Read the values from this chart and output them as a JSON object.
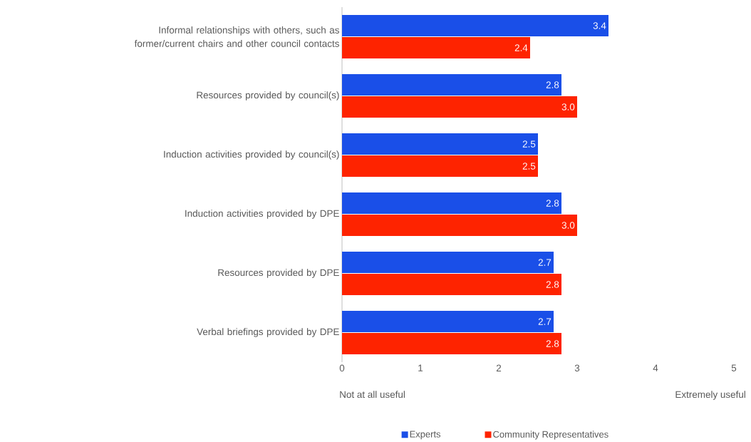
{
  "chart_data": {
    "type": "bar",
    "orientation": "horizontal",
    "categories": [
      "Informal relationships with others, such as former/current chairs and other council contacts",
      "Resources provided by council(s)",
      "Induction activities provided by council(s)",
      "Induction activities provided by DPE",
      "Resources provided by DPE",
      "Verbal briefings provided by DPE"
    ],
    "series": [
      {
        "name": "Experts",
        "color": "#1a4fe8",
        "values": [
          3.4,
          2.8,
          2.5,
          2.8,
          2.7,
          2.7
        ],
        "value_labels": [
          "3.4",
          "2.8",
          "2.5",
          "2.8",
          "2.7",
          "2.7"
        ]
      },
      {
        "name": "Community Representatives",
        "color": "#fe2300",
        "values": [
          2.4,
          3.0,
          2.5,
          3.0,
          2.8,
          2.8
        ],
        "value_labels": [
          "2.4",
          "3.0",
          "2.5",
          "3.0",
          "2.8",
          "2.8"
        ]
      }
    ],
    "xlim": [
      0,
      5
    ],
    "xticks": [
      0,
      1,
      2,
      3,
      4,
      5
    ],
    "annotations": [
      "Not at all useful",
      "Extremely useful"
    ],
    "legend": "bottom"
  }
}
